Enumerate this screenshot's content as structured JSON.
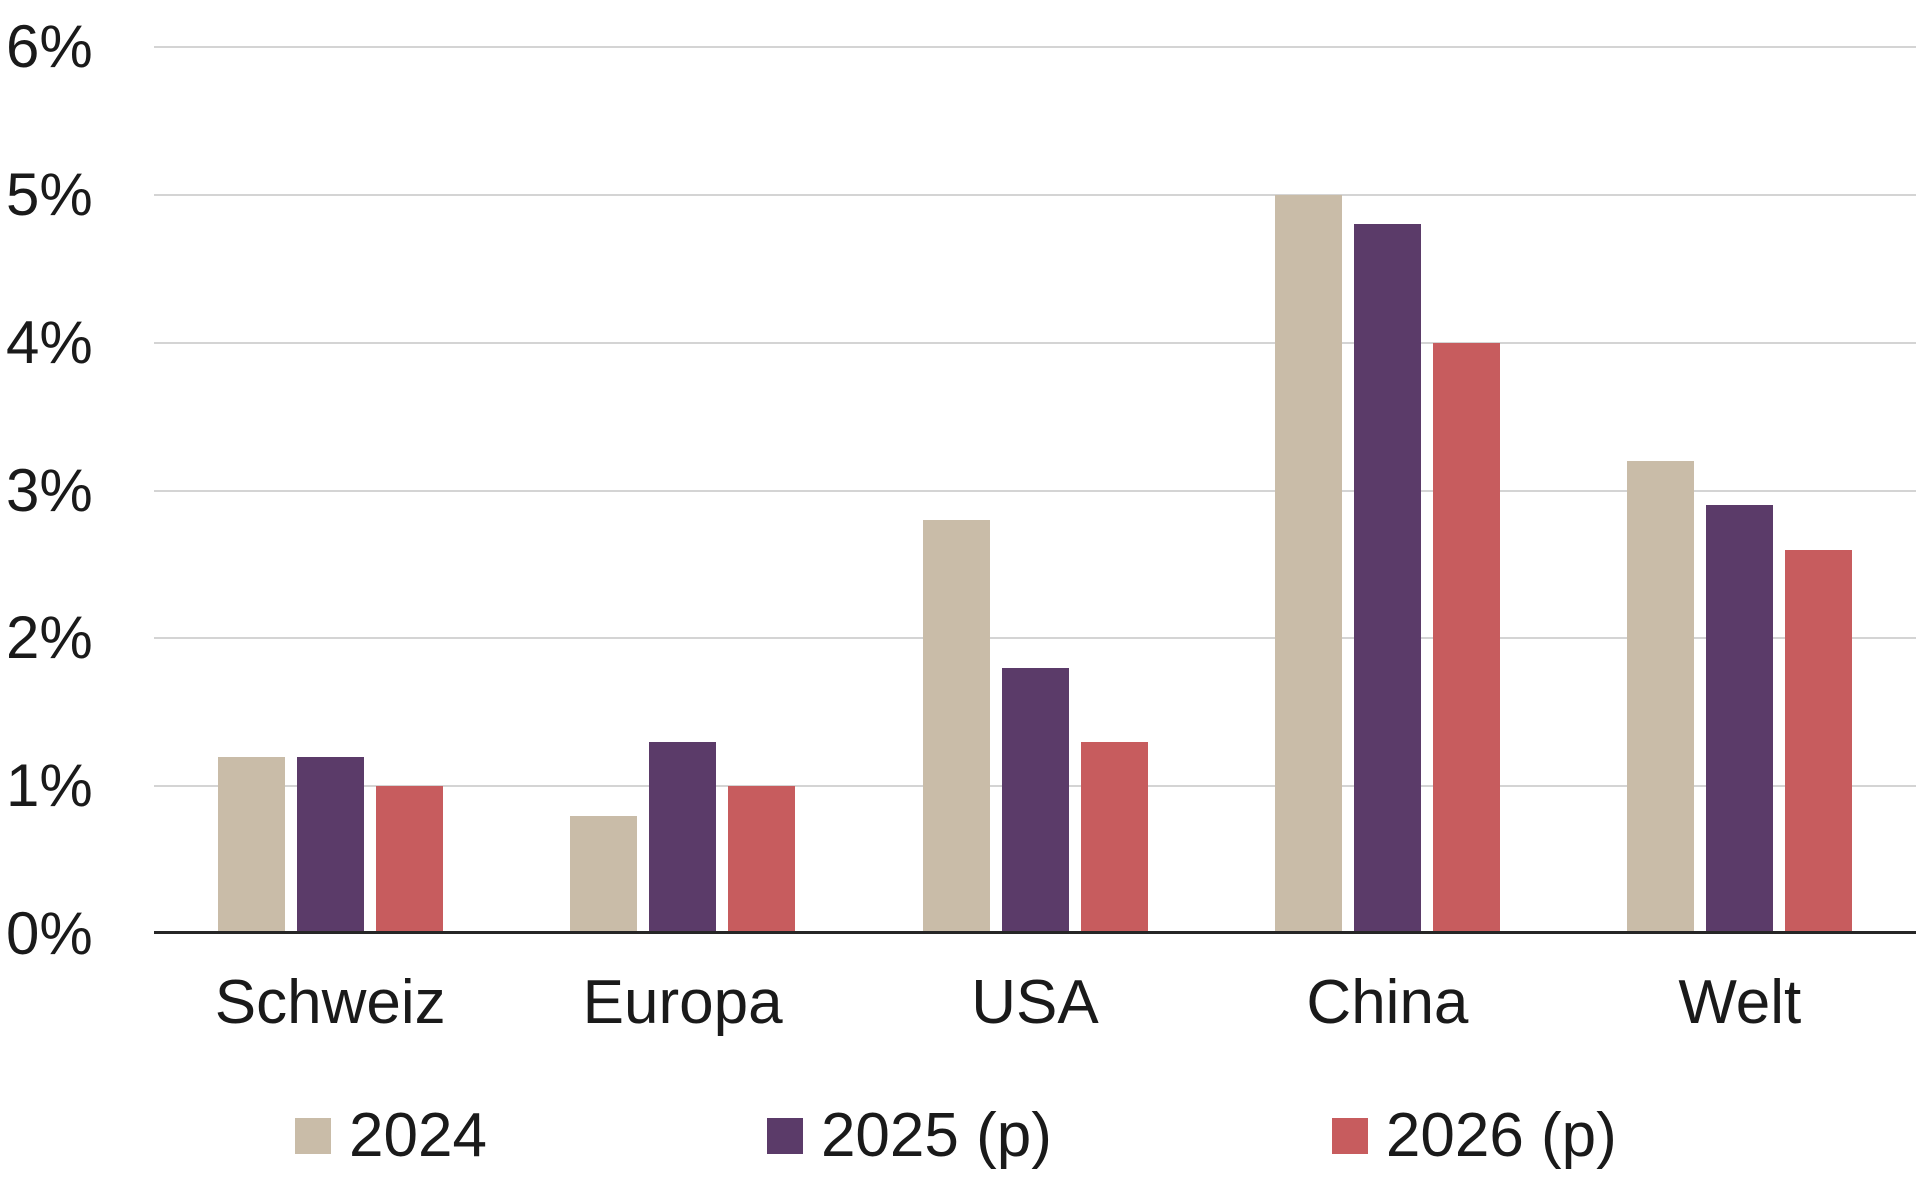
{
  "chart_data": {
    "type": "bar",
    "title": "",
    "categories": [
      "Schweiz",
      "Europa",
      "USA",
      "China",
      "Welt"
    ],
    "series": [
      {
        "name": "2024",
        "color": "#c9bca8",
        "values": [
          1.2,
          0.8,
          2.8,
          5.0,
          3.2
        ]
      },
      {
        "name": "2025 (p)",
        "color": "#5b3b69",
        "values": [
          1.2,
          1.3,
          1.8,
          4.8,
          2.9
        ]
      },
      {
        "name": "2026 (p)",
        "color": "#c75c5e",
        "values": [
          1.0,
          1.0,
          1.3,
          4.0,
          2.6
        ]
      }
    ],
    "ylim": [
      0,
      6
    ],
    "yticks": [
      "0%",
      "1%",
      "2%",
      "3%",
      "4%",
      "5%",
      "6%"
    ],
    "ytick_step": 1,
    "grid": true,
    "legend_position": "bottom"
  },
  "styles": {
    "background": "#ffffff",
    "grid_color": "#d4d4d4",
    "axis_color": "#262626",
    "text_color": "#1a1a1a"
  }
}
